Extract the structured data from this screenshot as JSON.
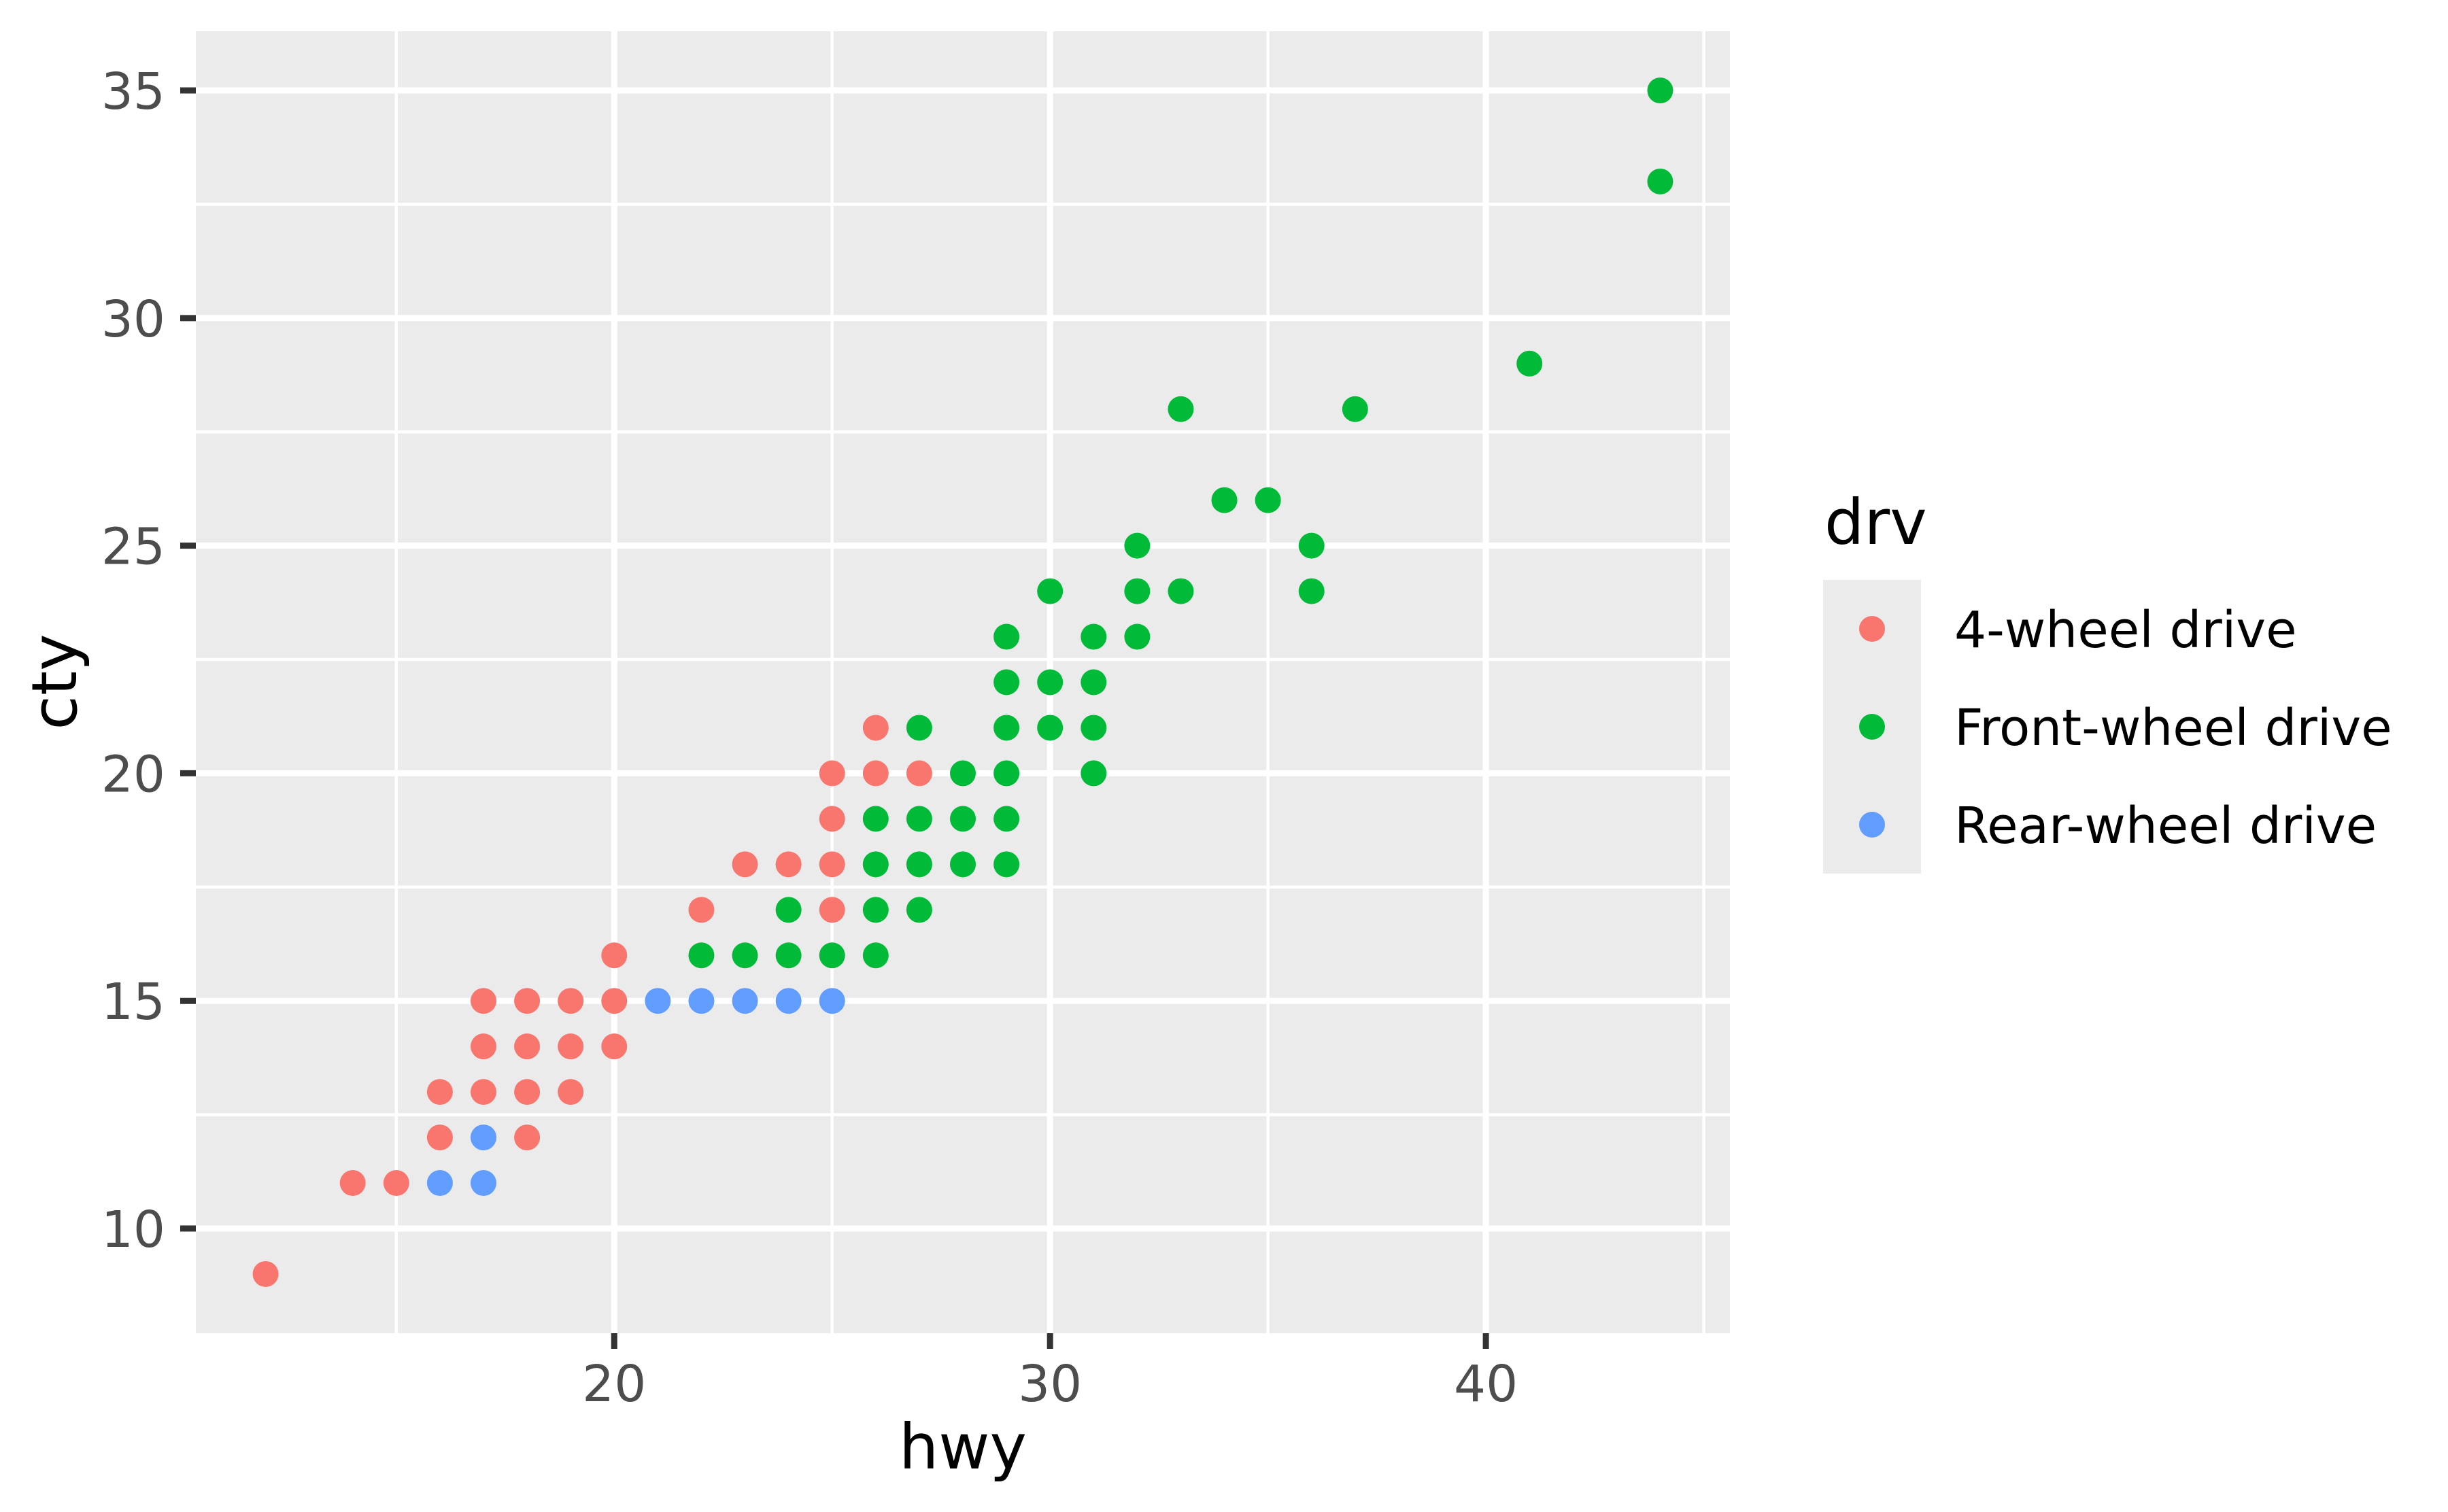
{
  "chart_data": {
    "type": "scatter",
    "title": "",
    "xlabel": "hwy",
    "ylabel": "cty",
    "xlim": [
      10.4,
      45.6
    ],
    "ylim": [
      7.7,
      36.3
    ],
    "x_ticks": [
      20,
      30,
      40
    ],
    "y_ticks": [
      10,
      15,
      20,
      25,
      30,
      35
    ],
    "x_minor": [
      15,
      25,
      35,
      45
    ],
    "y_minor": [
      12.5,
      17.5,
      22.5,
      27.5,
      32.5
    ],
    "grid": true,
    "panel_background": "#EBEBEB",
    "legend": {
      "title": "drv",
      "position": "right",
      "entries": [
        "4-wheel drive",
        "Front-wheel drive",
        "Rear-wheel drive"
      ]
    },
    "series": [
      {
        "name": "4-wheel drive",
        "color": "#F8766D",
        "points": [
          [
            12,
            9
          ],
          [
            14,
            11
          ],
          [
            15,
            11
          ],
          [
            16,
            12
          ],
          [
            18,
            12
          ],
          [
            16,
            13
          ],
          [
            17,
            13
          ],
          [
            18,
            13
          ],
          [
            19,
            13
          ],
          [
            17,
            14
          ],
          [
            18,
            14
          ],
          [
            19,
            14
          ],
          [
            20,
            14
          ],
          [
            17,
            15
          ],
          [
            18,
            15
          ],
          [
            19,
            15
          ],
          [
            20,
            15
          ],
          [
            20,
            16
          ],
          [
            22,
            17
          ],
          [
            25,
            17
          ],
          [
            23,
            18
          ],
          [
            24,
            18
          ],
          [
            25,
            18
          ],
          [
            25,
            19
          ],
          [
            25,
            20
          ],
          [
            26,
            20
          ],
          [
            27,
            20
          ],
          [
            26,
            21
          ]
        ]
      },
      {
        "name": "Front-wheel drive",
        "color": "#00BA38",
        "points": [
          [
            22,
            16
          ],
          [
            23,
            16
          ],
          [
            24,
            16
          ],
          [
            25,
            16
          ],
          [
            26,
            16
          ],
          [
            24,
            17
          ],
          [
            26,
            17
          ],
          [
            27,
            17
          ],
          [
            26,
            18
          ],
          [
            27,
            18
          ],
          [
            28,
            18
          ],
          [
            29,
            18
          ],
          [
            26,
            19
          ],
          [
            27,
            19
          ],
          [
            28,
            19
          ],
          [
            29,
            19
          ],
          [
            28,
            20
          ],
          [
            29,
            20
          ],
          [
            31,
            20
          ],
          [
            27,
            21
          ],
          [
            29,
            21
          ],
          [
            30,
            21
          ],
          [
            31,
            21
          ],
          [
            29,
            22
          ],
          [
            30,
            22
          ],
          [
            31,
            22
          ],
          [
            29,
            23
          ],
          [
            31,
            23
          ],
          [
            32,
            23
          ],
          [
            30,
            24
          ],
          [
            32,
            24
          ],
          [
            33,
            24
          ],
          [
            36,
            24
          ],
          [
            32,
            25
          ],
          [
            36,
            25
          ],
          [
            34,
            26
          ],
          [
            35,
            26
          ],
          [
            33,
            28
          ],
          [
            37,
            28
          ],
          [
            41,
            29
          ],
          [
            44,
            33
          ],
          [
            44,
            35
          ]
        ]
      },
      {
        "name": "Rear-wheel drive",
        "color": "#619CFF",
        "points": [
          [
            16,
            11
          ],
          [
            17,
            11
          ],
          [
            17,
            12
          ],
          [
            21,
            15
          ],
          [
            22,
            15
          ],
          [
            23,
            15
          ],
          [
            24,
            15
          ],
          [
            25,
            15
          ]
        ]
      }
    ]
  }
}
